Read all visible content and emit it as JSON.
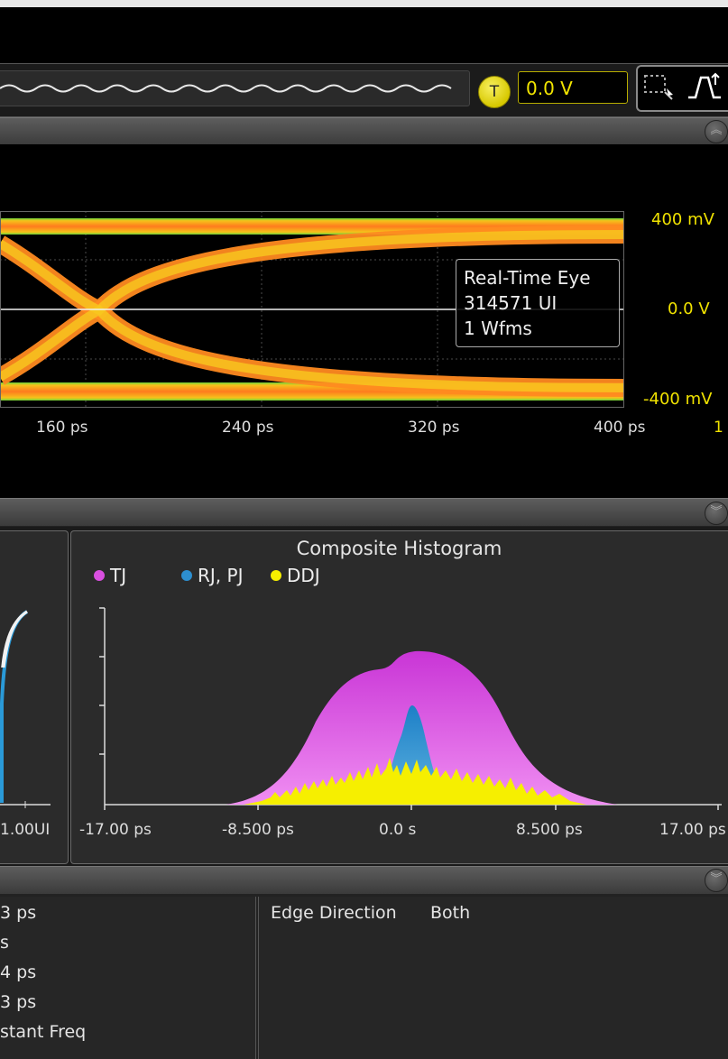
{
  "toolbar": {
    "trigger_badge": "T",
    "trigger_level": "0.0 V",
    "icons": [
      "waveform-icon",
      "trigger-icon",
      "zoom-select-icon",
      "edge-trigger-icon"
    ]
  },
  "eye": {
    "y_labels": [
      "400 mV",
      "0.0 V",
      "-400 mV"
    ],
    "x_labels": [
      "160 ps",
      "240 ps",
      "320 ps",
      "400 ps"
    ],
    "edge_marker": "1",
    "info": {
      "title": "Real-Time Eye",
      "ui_count": "314571 UI",
      "wfms": "1 Wfms"
    }
  },
  "left_panel": {
    "x_label": "1.00UI"
  },
  "histogram": {
    "title": "Composite Histogram",
    "legend": [
      {
        "label": "TJ",
        "color": "#d94fe0"
      },
      {
        "label": "RJ, PJ",
        "color": "#2d8fd0"
      },
      {
        "label": "DDJ",
        "color": "#f6ef00"
      }
    ],
    "x_labels": [
      "-17.00 ps",
      "-8.500 ps",
      "0.0 s",
      "8.500 ps",
      "17.00 ps"
    ]
  },
  "bottom": {
    "left_rows": [
      "3 ps",
      "s",
      "4 ps",
      "3 ps",
      "stant Freq"
    ],
    "edge_direction_label": "Edge Direction",
    "edge_direction_value": "Both"
  },
  "colors": {
    "accent_yellow": "#f0e200",
    "tj_magenta": "#d94fe0",
    "rj_blue": "#2d8fd0",
    "ddj_yellow": "#f6ef00"
  }
}
